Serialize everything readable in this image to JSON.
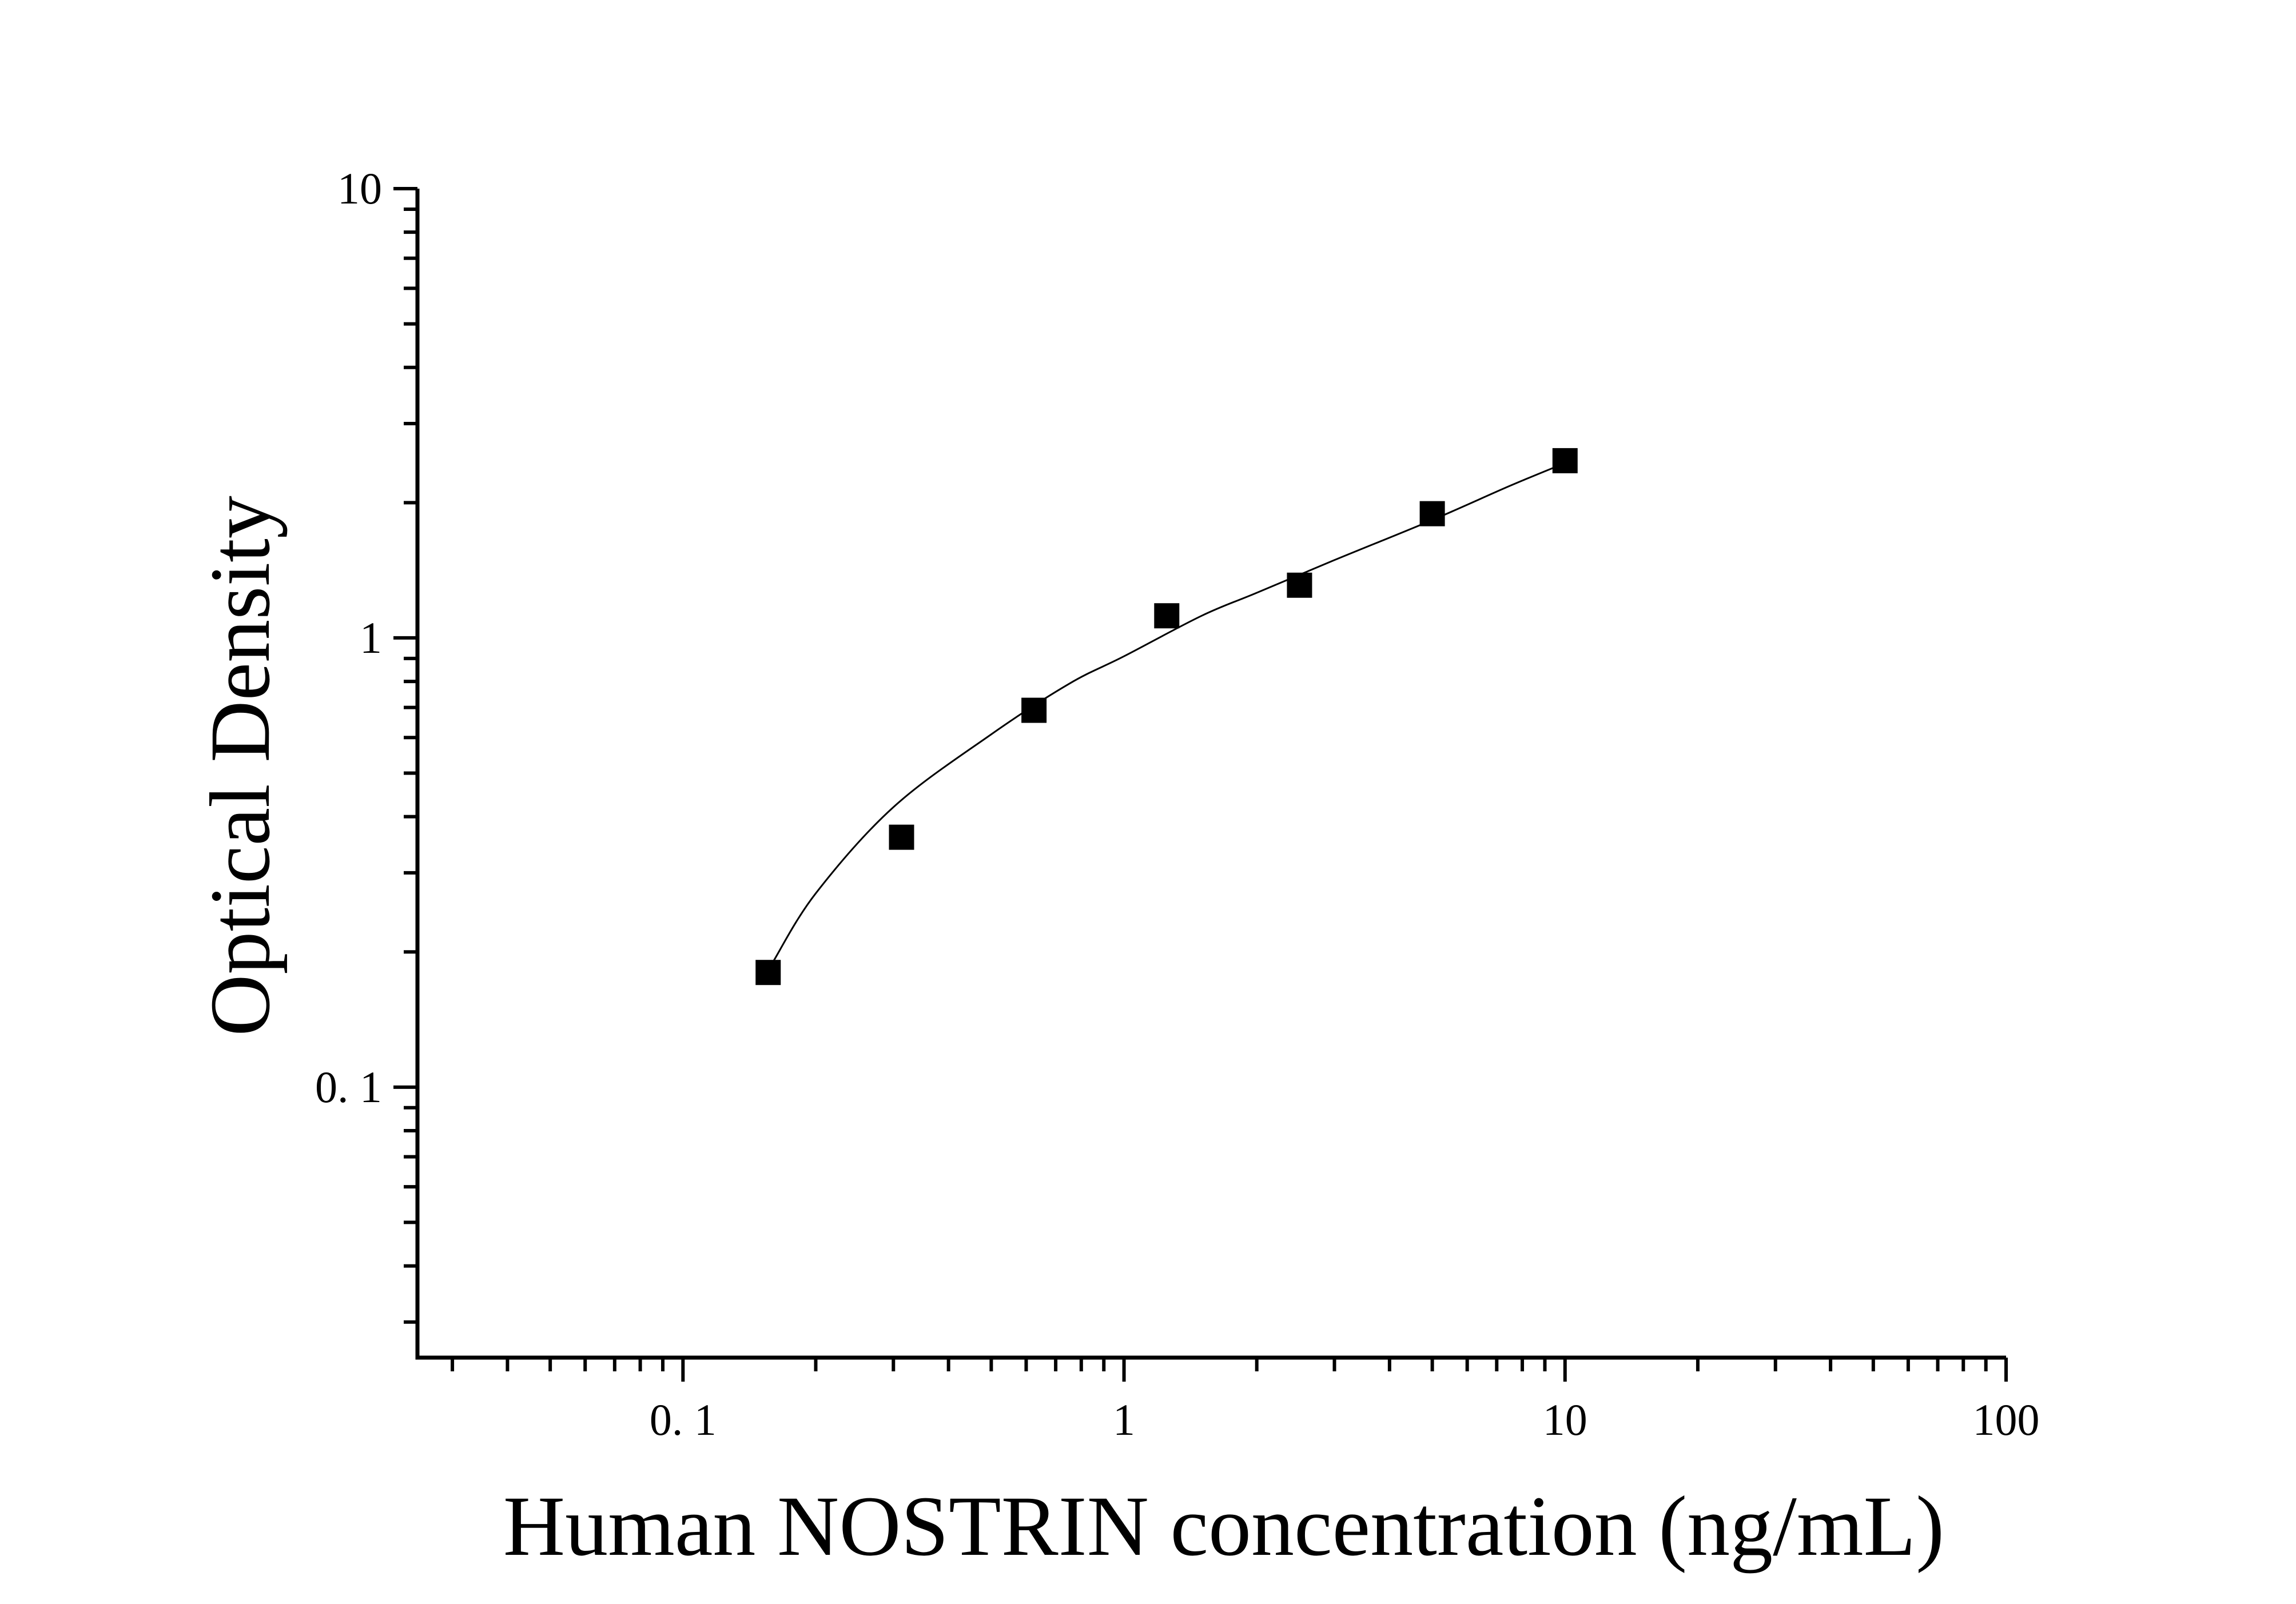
{
  "chart_data": {
    "type": "scatter",
    "title": "",
    "xlabel": "Human NOSTRIN concentration (ng/mL)",
    "ylabel": "Optical Density",
    "x_scale": "log",
    "y_scale": "log",
    "xlim": [
      0.025,
      100
    ],
    "ylim": [
      0.025,
      10
    ],
    "x_ticks": [
      {
        "value": 0.1,
        "label": "0. 1"
      },
      {
        "value": 1,
        "label": "1"
      },
      {
        "value": 10,
        "label": "10"
      },
      {
        "value": 100,
        "label": "100"
      }
    ],
    "y_ticks": [
      {
        "value": 0.1,
        "label": "0. 1"
      },
      {
        "value": 1,
        "label": "1"
      },
      {
        "value": 10,
        "label": "10"
      }
    ],
    "grid": false,
    "legend": "none",
    "marker_color": "#000000",
    "series": [
      {
        "x": [
          0.156,
          0.313,
          0.625,
          1.25,
          2.5,
          5,
          10
        ],
        "y": [
          0.18,
          0.36,
          0.69,
          1.12,
          1.31,
          1.89,
          2.48
        ]
      }
    ],
    "fit_curve": {
      "x": [
        0.16,
        0.2,
        0.3,
        0.5,
        0.75,
        1,
        1.5,
        2,
        3,
        5,
        7.5,
        10
      ],
      "y": [
        0.19,
        0.27,
        0.42,
        0.61,
        0.79,
        0.91,
        1.12,
        1.26,
        1.49,
        1.83,
        2.18,
        2.45
      ]
    }
  }
}
